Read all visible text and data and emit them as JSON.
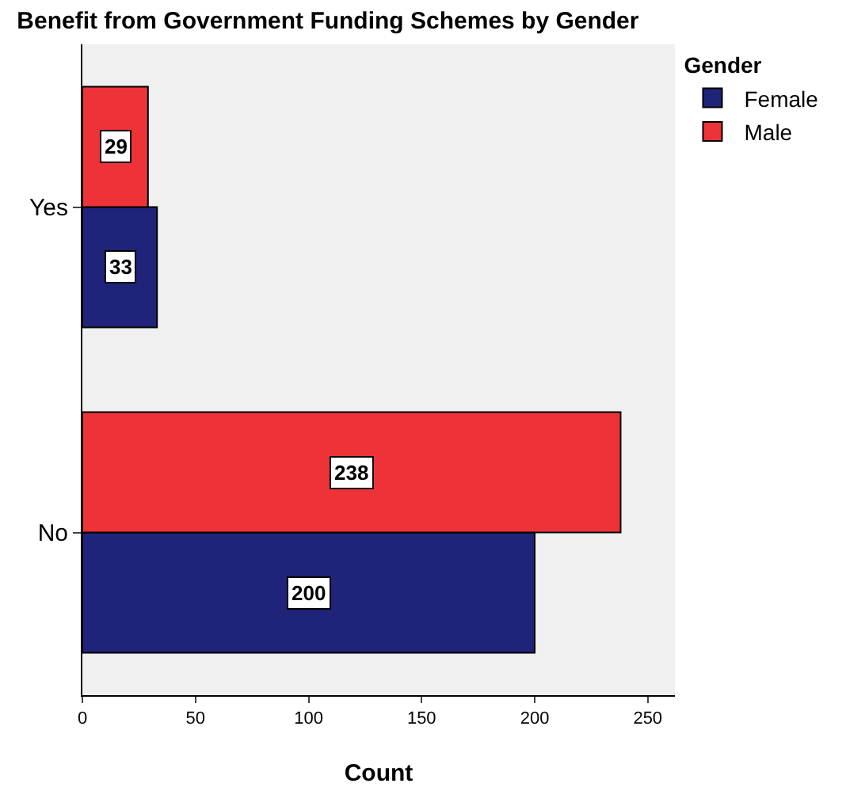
{
  "chart_data": {
    "type": "bar",
    "orientation": "horizontal",
    "title": "Benefit from Government Funding Schemes by Gender",
    "xlabel": "Count",
    "legend_title": "Gender",
    "categories": [
      "Yes",
      "No"
    ],
    "series": [
      {
        "name": "Female",
        "color": "#1f247a",
        "values": [
          33,
          200
        ]
      },
      {
        "name": "Male",
        "color": "#ee3338",
        "values": [
          29,
          238
        ]
      }
    ],
    "xlim": [
      0,
      262
    ],
    "xticks": [
      0,
      50,
      100,
      150,
      200,
      250
    ],
    "data_labels": true,
    "legend": "top right",
    "grid": false
  }
}
